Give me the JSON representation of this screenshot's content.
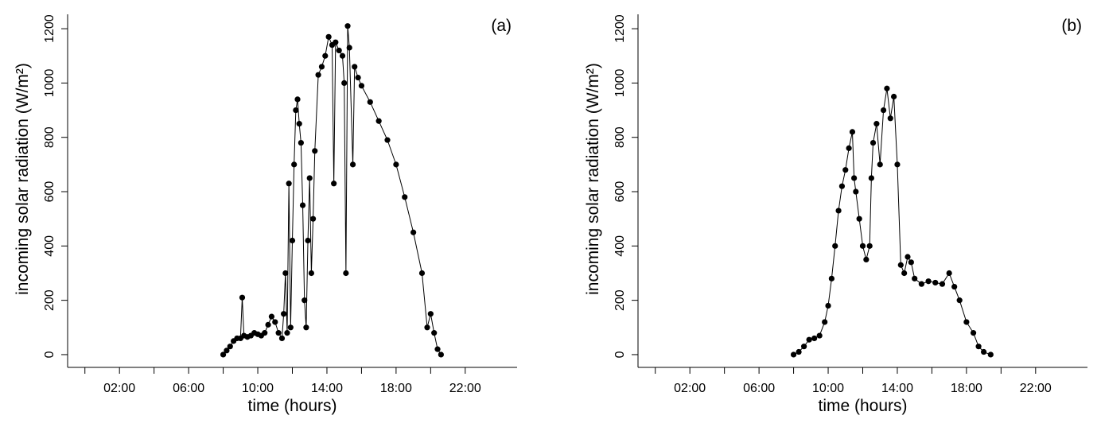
{
  "chart_data": [
    {
      "type": "line",
      "annotation": "(a)",
      "xlabel": "time (hours)",
      "ylabel": "incoming solar radiation (W/m²)",
      "color": "#000000",
      "markers": true,
      "xlim": [
        -1,
        25
      ],
      "ylim": [
        -47,
        1253
      ],
      "xticks": [
        {
          "value": 2,
          "label": "02:00"
        },
        {
          "value": 6,
          "label": "06:00"
        },
        {
          "value": 10,
          "label": "10:00"
        },
        {
          "value": 14,
          "label": "14:00"
        },
        {
          "value": 18,
          "label": "18:00"
        },
        {
          "value": 22,
          "label": "22:00"
        }
      ],
      "xminorticks": [
        0,
        4,
        8,
        12,
        16,
        20
      ],
      "yticks": [
        0,
        200,
        400,
        600,
        800,
        1000,
        1200
      ],
      "x": [
        8.0,
        8.2,
        8.4,
        8.6,
        8.8,
        9.0,
        9.1,
        9.2,
        9.4,
        9.6,
        9.8,
        10.0,
        10.2,
        10.4,
        10.6,
        10.8,
        11.0,
        11.2,
        11.4,
        11.5,
        11.6,
        11.7,
        11.8,
        11.9,
        12.0,
        12.1,
        12.2,
        12.3,
        12.4,
        12.5,
        12.6,
        12.7,
        12.8,
        12.9,
        13.0,
        13.1,
        13.2,
        13.3,
        13.5,
        13.7,
        13.9,
        14.1,
        14.3,
        14.4,
        14.5,
        14.7,
        14.9,
        15.0,
        15.1,
        15.2,
        15.3,
        15.5,
        15.6,
        15.8,
        16.0,
        16.5,
        17.0,
        17.5,
        18.0,
        18.5,
        19.0,
        19.5,
        19.8,
        20.0,
        20.2,
        20.4,
        20.6
      ],
      "values": [
        0,
        15,
        30,
        50,
        60,
        60,
        210,
        70,
        65,
        70,
        80,
        75,
        70,
        80,
        110,
        140,
        120,
        80,
        60,
        150,
        300,
        80,
        630,
        100,
        420,
        700,
        900,
        940,
        850,
        780,
        550,
        200,
        100,
        420,
        650,
        300,
        500,
        750,
        1030,
        1060,
        1100,
        1170,
        1140,
        630,
        1150,
        1120,
        1100,
        1000,
        300,
        1210,
        1130,
        700,
        1060,
        1020,
        990,
        930,
        860,
        790,
        700,
        580,
        450,
        300,
        100,
        150,
        80,
        20,
        0
      ]
    },
    {
      "type": "line",
      "annotation": "(b)",
      "xlabel": "time (hours)",
      "ylabel": "incoming solar radiation (W/m²)",
      "color": "#000000",
      "markers": true,
      "xlim": [
        -1,
        25
      ],
      "ylim": [
        -47,
        1253
      ],
      "xticks": [
        {
          "value": 2,
          "label": "02:00"
        },
        {
          "value": 6,
          "label": "06:00"
        },
        {
          "value": 10,
          "label": "10:00"
        },
        {
          "value": 14,
          "label": "14:00"
        },
        {
          "value": 18,
          "label": "18:00"
        },
        {
          "value": 22,
          "label": "22:00"
        }
      ],
      "xminorticks": [
        0,
        4,
        8,
        12,
        16,
        20
      ],
      "yticks": [
        0,
        200,
        400,
        600,
        800,
        1000,
        1200
      ],
      "x": [
        8.0,
        8.3,
        8.6,
        8.9,
        9.2,
        9.5,
        9.8,
        10.0,
        10.2,
        10.4,
        10.6,
        10.8,
        11.0,
        11.2,
        11.4,
        11.5,
        11.6,
        11.8,
        12.0,
        12.2,
        12.4,
        12.5,
        12.6,
        12.8,
        13.0,
        13.2,
        13.4,
        13.6,
        13.8,
        14.0,
        14.2,
        14.4,
        14.6,
        14.8,
        15.0,
        15.4,
        15.8,
        16.2,
        16.6,
        17.0,
        17.3,
        17.6,
        18.0,
        18.4,
        18.7,
        19.0,
        19.4
      ],
      "values": [
        0,
        10,
        30,
        55,
        60,
        70,
        120,
        180,
        280,
        400,
        530,
        620,
        680,
        760,
        820,
        650,
        600,
        500,
        400,
        350,
        400,
        650,
        780,
        850,
        700,
        900,
        980,
        870,
        950,
        700,
        330,
        300,
        360,
        340,
        280,
        260,
        270,
        265,
        260,
        300,
        250,
        200,
        120,
        80,
        30,
        10,
        0
      ]
    }
  ]
}
